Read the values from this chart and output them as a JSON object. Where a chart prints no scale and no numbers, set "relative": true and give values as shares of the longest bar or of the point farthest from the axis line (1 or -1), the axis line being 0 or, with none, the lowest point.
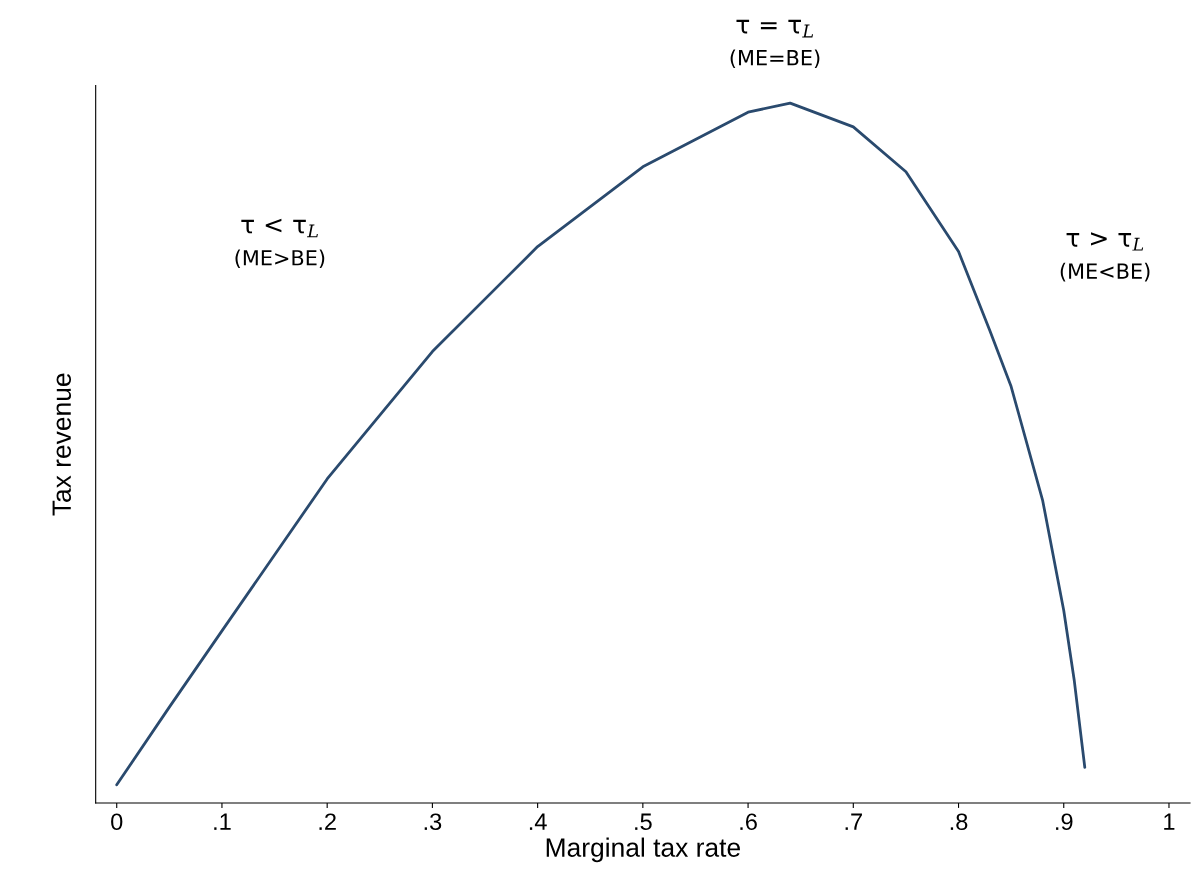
{
  "chart_data": {
    "type": "line",
    "relative": true,
    "xlabel": "Marginal tax rate",
    "ylabel": "Tax revenue",
    "x": [
      0,
      0.05,
      0.1,
      0.2,
      0.3,
      0.4,
      0.5,
      0.6,
      0.64,
      0.7,
      0.75,
      0.8,
      0.83,
      0.85,
      0.88,
      0.9,
      0.91,
      0.92
    ],
    "series": [
      {
        "color": "#2a4a6e",
        "values": [
          0.026,
          0.137,
          0.246,
          0.463,
          0.645,
          0.795,
          0.909,
          0.987,
          1.0,
          0.966,
          0.902,
          0.788,
          0.674,
          0.595,
          0.432,
          0.275,
          0.175,
          0.051
        ]
      }
    ],
    "xlim": [
      -0.02,
      1.02
    ],
    "xticks": [
      0,
      {
        "value": 0.1,
        "label": ".1"
      },
      {
        "value": 0.2,
        "label": ".2"
      },
      {
        "value": 0.3,
        "label": ".3"
      },
      {
        "value": 0.4,
        "label": ".4"
      },
      {
        "value": 0.5,
        "label": ".5"
      },
      {
        "value": 0.6,
        "label": ".6"
      },
      {
        "value": 0.7,
        "label": ".7"
      },
      {
        "value": 0.8,
        "label": ".8"
      },
      {
        "value": 0.9,
        "label": ".9"
      },
      1
    ],
    "annotations": [
      "τ < τ$_{L}$",
      "(ME>BE)",
      "τ = τ$_{L}$",
      "(ME=BE)",
      "τ > τ$_{L}$",
      "(ME<BE)"
    ],
    "grid": false,
    "legend": false
  }
}
